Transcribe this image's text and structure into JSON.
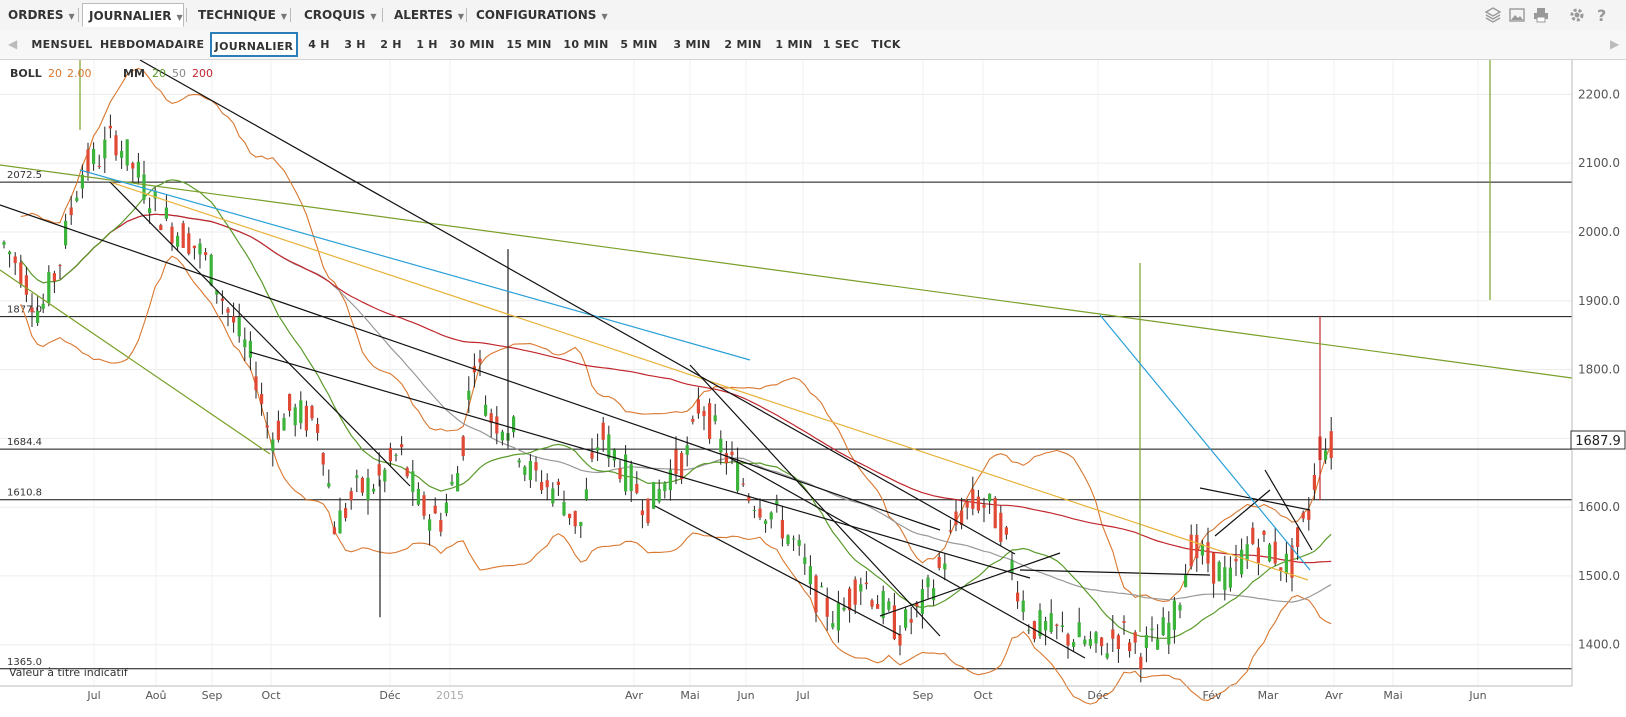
{
  "menu": {
    "items": [
      {
        "label": "ORDRES",
        "x": 0
      },
      {
        "label": "JOURNALIER",
        "x": 82
      },
      {
        "label": "TECHNIQUE",
        "x": 192
      },
      {
        "label": "CROQUIS",
        "x": 298
      },
      {
        "label": "ALERTES",
        "x": 388
      },
      {
        "label": "CONFIGURATIONS",
        "x": 470
      }
    ],
    "active": "JOURNALIER"
  },
  "timeframes": {
    "items": [
      "MENSUEL",
      "HEBDOMADAIRE",
      "JOURNALIER",
      "4 H",
      "3 H",
      "2 H",
      "1 H",
      "30 MIN",
      "15 MIN",
      "10 MIN",
      "5 MIN",
      "3 MIN",
      "2 MIN",
      "1 MIN",
      "1 SEC",
      "TICK"
    ],
    "active": "JOURNALIER"
  },
  "indicators": {
    "boll_label": "BOLL",
    "boll_period": "20",
    "boll_dev": "2.00",
    "mm_label": "MM",
    "mm_20": "20",
    "mm_50": "50",
    "mm_200": "200"
  },
  "chart_note": "Valeur à titre indicatif",
  "current_price": "1687.9",
  "colors": {
    "boll": "#d9772f",
    "mm20": "#5a9a2a",
    "mm50": "#999999",
    "mm200": "#c0272d",
    "candle_up": "#3cb43c",
    "candle_down": "#e04a35",
    "trend_blue": "#2aa0d8",
    "trend_yellow": "#e8b23a",
    "trend_olive": "#7aa02a"
  },
  "chart_data": {
    "type": "candlestick",
    "x_axis_labels": [
      "Jul",
      "Aoû",
      "Sep",
      "Oct",
      "Déc",
      "2015",
      "Avr",
      "Mai",
      "Jun",
      "Jul",
      "Sep",
      "Oct",
      "Déc",
      "Fév",
      "Mar",
      "Avr",
      "Mai",
      "Jun"
    ],
    "y_ticks": [
      "2200.0",
      "2100.0",
      "2000.0",
      "1900.0",
      "1800.0",
      "1700.0",
      "1600.0",
      "1500.0",
      "1400.0"
    ],
    "ylim": [
      1340,
      2250
    ],
    "horizontal_levels": [
      {
        "label": "2072.5",
        "value": 2072.5
      },
      {
        "label": "1877.0",
        "value": 1877.0
      },
      {
        "label": "1684.4",
        "value": 1684.4
      },
      {
        "label": "1610.8",
        "value": 1610.8
      },
      {
        "label": "1365.0",
        "value": 1365.0
      }
    ],
    "close_path": [
      [
        0,
        1990
      ],
      [
        20,
        1950
      ],
      [
        40,
        1880
      ],
      [
        60,
        1960
      ],
      [
        80,
        2085
      ],
      [
        100,
        2110
      ],
      [
        115,
        2140
      ],
      [
        135,
        2090
      ],
      [
        155,
        2040
      ],
      [
        170,
        2010
      ],
      [
        190,
        1990
      ],
      [
        210,
        1950
      ],
      [
        230,
        1880
      ],
      [
        255,
        1800
      ],
      [
        270,
        1700
      ],
      [
        290,
        1740
      ],
      [
        320,
        1720
      ],
      [
        335,
        1570
      ],
      [
        355,
        1620
      ],
      [
        380,
        1640
      ],
      [
        400,
        1680
      ],
      [
        420,
        1600
      ],
      [
        440,
        1580
      ],
      [
        460,
        1660
      ],
      [
        475,
        1830
      ],
      [
        490,
        1730
      ],
      [
        510,
        1720
      ],
      [
        530,
        1650
      ],
      [
        560,
        1620
      ],
      [
        580,
        1570
      ],
      [
        600,
        1710
      ],
      [
        630,
        1640
      ],
      [
        650,
        1600
      ],
      [
        670,
        1650
      ],
      [
        690,
        1680
      ],
      [
        700,
        1760
      ],
      [
        720,
        1690
      ],
      [
        750,
        1620
      ],
      [
        780,
        1580
      ],
      [
        800,
        1530
      ],
      [
        820,
        1460
      ],
      [
        840,
        1440
      ],
      [
        860,
        1500
      ],
      [
        880,
        1460
      ],
      [
        900,
        1420
      ],
      [
        920,
        1450
      ],
      [
        940,
        1510
      ],
      [
        960,
        1590
      ],
      [
        980,
        1610
      ],
      [
        1000,
        1580
      ],
      [
        1015,
        1500
      ],
      [
        1030,
        1430
      ],
      [
        1050,
        1420
      ],
      [
        1080,
        1410
      ],
      [
        1100,
        1390
      ],
      [
        1120,
        1420
      ],
      [
        1140,
        1390
      ],
      [
        1160,
        1410
      ],
      [
        1175,
        1440
      ],
      [
        1190,
        1540
      ],
      [
        1210,
        1520
      ],
      [
        1230,
        1490
      ],
      [
        1250,
        1550
      ],
      [
        1270,
        1540
      ],
      [
        1290,
        1510
      ],
      [
        1310,
        1600
      ],
      [
        1320,
        1690
      ],
      [
        1330,
        1688
      ]
    ],
    "wick_spikes": [
      {
        "x": 380,
        "low": 1440,
        "high": 1640
      },
      {
        "x": 508,
        "low": 1690,
        "high": 1975
      },
      {
        "x": 1320,
        "low": 1610,
        "high": 1878
      }
    ]
  }
}
